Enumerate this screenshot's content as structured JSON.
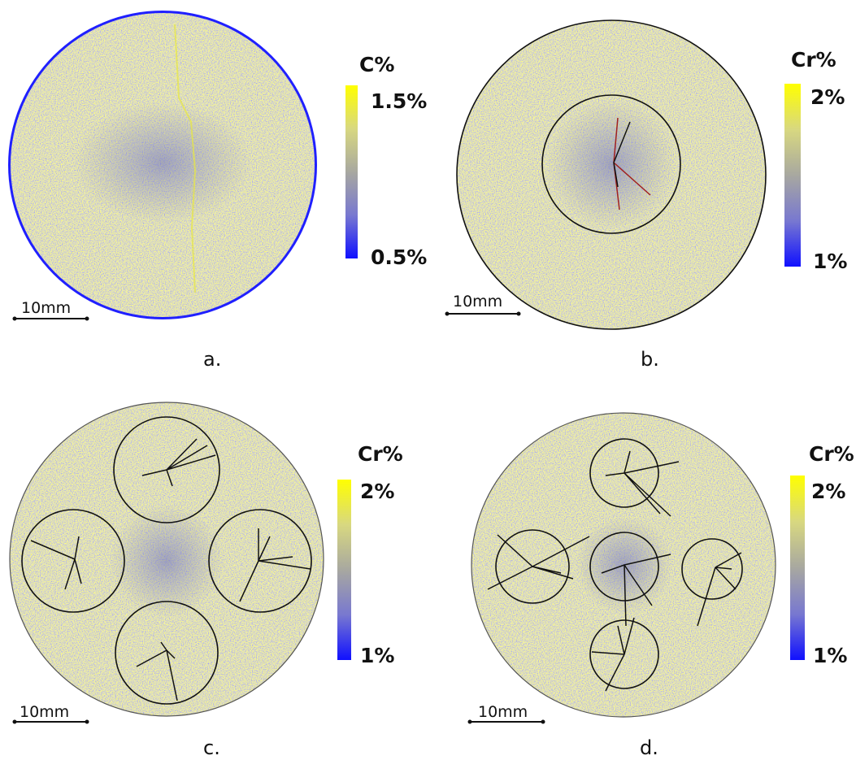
{
  "panels": [
    {
      "colorbar_title": "C%",
      "colorbar_max": "1.5%",
      "colorbar_min": "0.5%",
      "scale_label": "10mm",
      "label": "a."
    },
    {
      "colorbar_title": "Cr%",
      "colorbar_max": "2%",
      "colorbar_min": "1%",
      "scale_label": "10mm",
      "label": "b."
    },
    {
      "colorbar_title": "Cr%",
      "colorbar_max": "2%",
      "colorbar_min": "1%",
      "scale_label": "10mm",
      "label": "c."
    },
    {
      "colorbar_title": "Cr%",
      "colorbar_max": "2%",
      "colorbar_min": "1%",
      "scale_label": "10mm",
      "label": "d."
    }
  ]
}
